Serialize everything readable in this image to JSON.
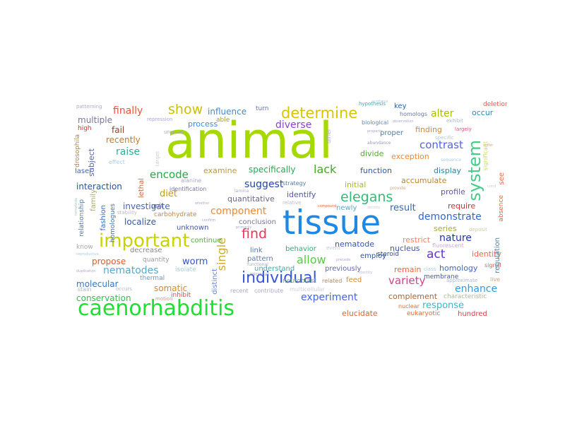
{
  "cloud": {
    "words": [
      {
        "text": "animal",
        "color": "#a6d900"
      },
      {
        "text": "tissue",
        "color": "#1e88e5"
      },
      {
        "text": "caenorhabditis",
        "color": "#22dd33"
      },
      {
        "text": "important",
        "color": "#c8d400"
      },
      {
        "text": "individual",
        "color": "#3355dd"
      },
      {
        "text": "determine",
        "color": "#d8c400"
      },
      {
        "text": "system",
        "color": "#44cc88"
      },
      {
        "text": "find",
        "color": "#ee3355"
      },
      {
        "text": "elegans",
        "color": "#33bb77"
      },
      {
        "text": "show",
        "color": "#ccc000"
      },
      {
        "text": "finally",
        "color": "#ee5533"
      },
      {
        "text": "contrast",
        "color": "#5566dd"
      },
      {
        "text": "component",
        "color": "#ee8833"
      },
      {
        "text": "single",
        "color": "#ccaa33"
      },
      {
        "text": "nematodes",
        "color": "#55aacc"
      },
      {
        "text": "demonstrate",
        "color": "#3366cc"
      },
      {
        "text": "allow",
        "color": "#55cc44"
      },
      {
        "text": "variety",
        "color": "#cc4488"
      },
      {
        "text": "experiment",
        "color": "#4466dd"
      },
      {
        "text": "response",
        "color": "#33bbcc"
      },
      {
        "text": "enhance",
        "color": "#3399dd"
      },
      {
        "text": "nature",
        "color": "#2233aa"
      },
      {
        "text": "act",
        "color": "#6633cc"
      },
      {
        "text": "lack",
        "color": "#44aa22"
      },
      {
        "text": "diverse",
        "color": "#8844cc"
      },
      {
        "text": "raise",
        "color": "#33aa99"
      },
      {
        "text": "suggest",
        "color": "#2244aa"
      },
      {
        "text": "encode",
        "color": "#22aa44"
      },
      {
        "text": "specifically",
        "color": "#22aa55"
      },
      {
        "text": "alter",
        "color": "#aabb00"
      },
      {
        "text": "influence",
        "color": "#4488cc"
      },
      {
        "text": "result",
        "color": "#3366bb"
      },
      {
        "text": "worm",
        "color": "#3355bb"
      },
      {
        "text": "diet",
        "color": "#cc9900"
      },
      {
        "text": "localize",
        "color": "#3355aa"
      },
      {
        "text": "investigate",
        "color": "#4466bb"
      },
      {
        "text": "interaction",
        "color": "#2255aa"
      },
      {
        "text": "propose",
        "color": "#ee5522"
      },
      {
        "text": "molecular",
        "color": "#3377cc"
      },
      {
        "text": "conservation",
        "color": "#33bb55"
      },
      {
        "text": "somatic",
        "color": "#dd8822"
      },
      {
        "text": "recently",
        "color": "#cc7722"
      },
      {
        "text": "multiple",
        "color": "#777799"
      },
      {
        "text": "fail",
        "color": "#884422"
      },
      {
        "text": "process",
        "color": "#4488dd"
      },
      {
        "text": "able",
        "color": "#aa9944"
      },
      {
        "text": "quantitative",
        "color": "#666688"
      },
      {
        "text": "examine",
        "color": "#bb9933"
      },
      {
        "text": "identify",
        "color": "#5555aa"
      },
      {
        "text": "function",
        "color": "#3355aa"
      },
      {
        "text": "display",
        "color": "#2288aa"
      },
      {
        "text": "exception",
        "color": "#ee8833"
      },
      {
        "text": "divide",
        "color": "#55aa33"
      },
      {
        "text": "proper",
        "color": "#5577aa"
      },
      {
        "text": "finding",
        "color": "#cc8844"
      },
      {
        "text": "accumulate",
        "color": "#bb8822"
      },
      {
        "text": "initial",
        "color": "#aabb33"
      },
      {
        "text": "require",
        "color": "#cc3333"
      },
      {
        "text": "profile",
        "color": "#6655aa"
      },
      {
        "text": "series",
        "color": "#aaaa33"
      },
      {
        "text": "nematode",
        "color": "#3355aa"
      },
      {
        "text": "restrict",
        "color": "#ee8866"
      },
      {
        "text": "nucleus",
        "color": "#4455aa"
      },
      {
        "text": "remain",
        "color": "#ee6633"
      },
      {
        "text": "complement",
        "color": "#aa6633"
      },
      {
        "text": "elucidate",
        "color": "#dd6633"
      },
      {
        "text": "homology",
        "color": "#4466bb"
      },
      {
        "text": "identity",
        "color": "#ee6655"
      },
      {
        "text": "key",
        "color": "#2266aa"
      },
      {
        "text": "occur",
        "color": "#3388bb"
      },
      {
        "text": "deletion",
        "color": "#ee5544"
      },
      {
        "text": "see",
        "color": "#ee6644"
      },
      {
        "text": "continue",
        "color": "#55aa44"
      },
      {
        "text": "pattern",
        "color": "#6677aa"
      },
      {
        "text": "understand",
        "color": "#44aaaa"
      },
      {
        "text": "previously",
        "color": "#6666aa"
      },
      {
        "text": "behavior",
        "color": "#33aa77"
      },
      {
        "text": "feed",
        "color": "#dd8833"
      },
      {
        "text": "employ",
        "color": "#2255aa"
      },
      {
        "text": "steroid",
        "color": "#334499"
      },
      {
        "text": "link",
        "color": "#5577aa"
      },
      {
        "text": "conclusion",
        "color": "#777799"
      },
      {
        "text": "newly",
        "color": "#55aacc"
      },
      {
        "text": "unknown",
        "color": "#4455aa"
      },
      {
        "text": "carbohydrate",
        "color": "#cc8833"
      },
      {
        "text": "decrease",
        "color": "#888888"
      },
      {
        "text": "quantity",
        "color": "#9999aa"
      },
      {
        "text": "thermal",
        "color": "#6699cc"
      },
      {
        "text": "isolate",
        "color": "#aaccdd"
      },
      {
        "text": "inhibit",
        "color": "#ee4433"
      },
      {
        "text": "distinct",
        "color": "#6688cc"
      },
      {
        "text": "subject",
        "color": "#5566aa"
      },
      {
        "text": "family",
        "color": "#aaaa66"
      },
      {
        "text": "fashion",
        "color": "#3366bb"
      },
      {
        "text": "lethal",
        "color": "#cc6633"
      },
      {
        "text": "laser",
        "color": "#4466aa"
      },
      {
        "text": "high",
        "color": "#cc3333"
      },
      {
        "text": "drosophila",
        "color": "#aa8844"
      },
      {
        "text": "relationship",
        "color": "#5577aa"
      },
      {
        "text": "homologues",
        "color": "#4477aa"
      },
      {
        "text": "regulation",
        "color": "#4488aa"
      },
      {
        "text": "absence",
        "color": "#ee6633"
      },
      {
        "text": "membrane",
        "color": "#4455aa"
      },
      {
        "text": "eukaryotic",
        "color": "#ee6633"
      },
      {
        "text": "hundred",
        "color": "#cc4444"
      },
      {
        "text": "characteristic",
        "color": "#aabb99"
      },
      {
        "text": "fluorescent",
        "color": "#ccaacc"
      },
      {
        "text": "nuclear",
        "color": "#ee6633"
      },
      {
        "text": "neuroblast",
        "color": "#77aa77"
      },
      {
        "text": "related",
        "color": "#aa8866"
      },
      {
        "text": "recent",
        "color": "#aaaacc"
      },
      {
        "text": "contribute",
        "color": "#aaaacc"
      },
      {
        "text": "multicellular",
        "color": "#ccccdd"
      },
      {
        "text": "unit",
        "color": "#6655aa"
      },
      {
        "text": "identification",
        "color": "#777799"
      },
      {
        "text": "alanine",
        "color": "#aaaacc"
      },
      {
        "text": "strategy",
        "color": "#5577aa"
      },
      {
        "text": "relative",
        "color": "#bbbbcc"
      },
      {
        "text": "unusual",
        "color": "#aaaaaa"
      },
      {
        "text": "repression",
        "color": "#aaaadd"
      },
      {
        "text": "effect",
        "color": "#aaccdd"
      },
      {
        "text": "homologs",
        "color": "#6677aa"
      },
      {
        "text": "biological",
        "color": "#6688aa"
      },
      {
        "text": "largely",
        "color": "#dd5577"
      },
      {
        "text": "exhibit",
        "color": "#aabbcc"
      },
      {
        "text": "significant",
        "color": "#ccdd55"
      },
      {
        "text": "signal",
        "color": "#cc6666"
      },
      {
        "text": "live",
        "color": "#ccaa66"
      },
      {
        "text": "approximate",
        "color": "#aabbcc"
      },
      {
        "text": "turn",
        "color": "#6677aa"
      },
      {
        "text": "hypothesis",
        "color": "#44aaaa"
      },
      {
        "text": "stain",
        "color": "#aabbcc"
      },
      {
        "text": "occurs",
        "color": "#aabbcc"
      },
      {
        "text": "know",
        "color": "#aaaaaa"
      },
      {
        "text": "motion",
        "color": "#cc9999"
      },
      {
        "text": "patterning",
        "color": "#aaaacc"
      },
      {
        "text": "stability",
        "color": "#bbbbbb"
      },
      {
        "text": "class",
        "color": "#aaccdd"
      },
      {
        "text": "specific",
        "color": "#aaccdd"
      },
      {
        "text": "differ",
        "color": "#aaaacc"
      },
      {
        "text": "target",
        "color": "#ccccdd"
      },
      {
        "text": "deposit",
        "color": "#ccccaa"
      },
      {
        "text": "event",
        "color": "#bbccdd"
      },
      {
        "text": "synthesis",
        "color": "#aaccdd"
      },
      {
        "text": "micronas",
        "color": "#9999aa"
      },
      {
        "text": "functional",
        "color": "#aaaabb"
      },
      {
        "text": "sequence",
        "color": "#aaccdd"
      },
      {
        "text": "abundance",
        "color": "#9999bb"
      },
      {
        "text": "property",
        "color": "#aaaacc"
      },
      {
        "text": "observation",
        "color": "#aaaacc"
      },
      {
        "text": "lamina",
        "color": "#aaaacc"
      },
      {
        "text": "primarily",
        "color": "#aaaacc"
      },
      {
        "text": "confirm",
        "color": "#aaaacc"
      },
      {
        "text": "whether",
        "color": "#aaaacc"
      },
      {
        "text": "compound",
        "color": "#ee6633"
      },
      {
        "text": "identity",
        "color": "#bbbbcc"
      },
      {
        "text": "provide",
        "color": "#ccaa88"
      },
      {
        "text": "density",
        "color": "#ccccdd"
      },
      {
        "text": "reproductive",
        "color": "#aaccdd"
      },
      {
        "text": "duplication",
        "color": "#aaaacc"
      },
      {
        "text": "nematoda",
        "color": "#aaccbb"
      },
      {
        "text": "suffer",
        "color": "#ccaa88"
      },
      {
        "text": "cond",
        "color": "#ccccdd"
      },
      {
        "text": "precede",
        "color": "#aaaacc"
      }
    ]
  }
}
